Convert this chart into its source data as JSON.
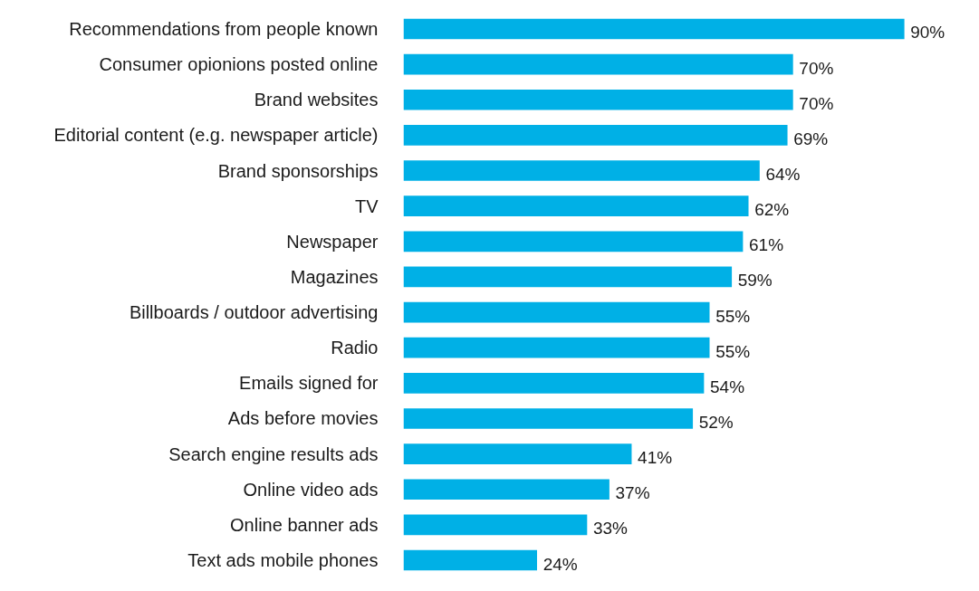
{
  "chart_data": {
    "type": "bar",
    "orientation": "horizontal",
    "categories": [
      "Recommendations from people known",
      "Consumer opionions posted online",
      "Brand websites",
      "Editorial content (e.g. newspaper article)",
      "Brand sponsorships",
      "TV",
      "Newspaper",
      "Magazines",
      "Billboards / outdoor advertising",
      "Radio",
      "Emails signed for",
      "Ads before movies",
      "Search engine results ads",
      "Online video ads",
      "Online banner ads",
      "Text ads mobile phones"
    ],
    "values": [
      90,
      70,
      70,
      69,
      64,
      62,
      61,
      59,
      55,
      55,
      54,
      52,
      41,
      37,
      33,
      24
    ],
    "value_labels": [
      "90%",
      "70%",
      "70%",
      "69%",
      "64%",
      "62%",
      "61%",
      "59%",
      "55%",
      "55%",
      "54%",
      "52%",
      "41%",
      "37%",
      "33%",
      "24%"
    ],
    "color": "#00b0e6",
    "tick_labels": "y",
    "grid": false
  }
}
